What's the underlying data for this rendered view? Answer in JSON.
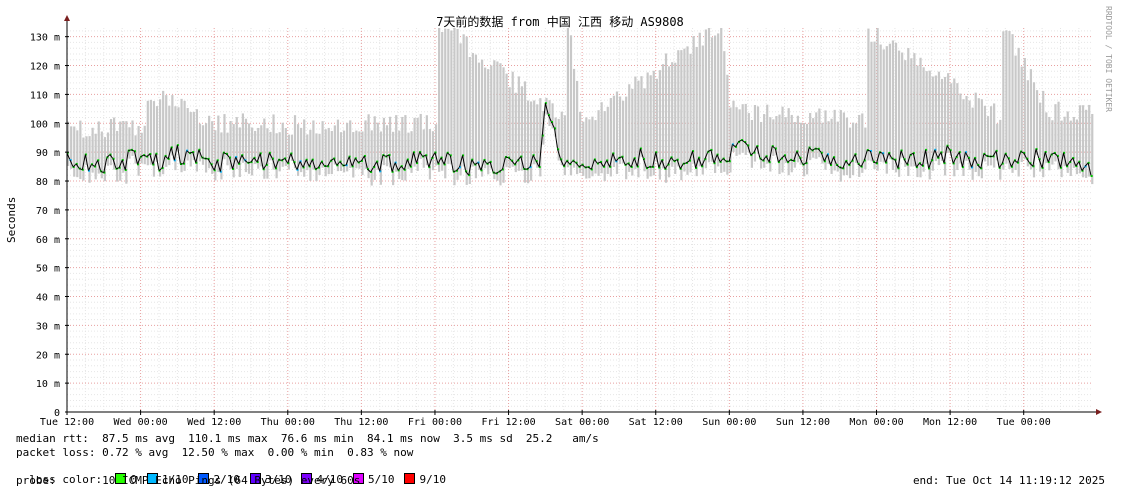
{
  "chart_data": {
    "type": "line",
    "title": "7天前的数据 from 中国 江西 移动 AS9808",
    "ylabel": "Seconds",
    "ylim": [
      0,
      133
    ],
    "y_ticks": [
      "0",
      "10 m",
      "20 m",
      "30 m",
      "40 m",
      "50 m",
      "60 m",
      "70 m",
      "80 m",
      "90 m",
      "100 m",
      "110 m",
      "120 m",
      "130 m"
    ],
    "y_tick_values": [
      0,
      10,
      20,
      30,
      40,
      50,
      60,
      70,
      80,
      90,
      100,
      110,
      120,
      130
    ],
    "x_ticks": [
      "Tue 12:00",
      "Wed 00:00",
      "Wed 12:00",
      "Thu 00:00",
      "Thu 12:00",
      "Fri 00:00",
      "Fri 12:00",
      "Sat 00:00",
      "Sat 12:00",
      "Sun 00:00",
      "Sun 12:00",
      "Mon 00:00",
      "Mon 12:00",
      "Tue 00:00"
    ],
    "x_range_hours": [
      0,
      167.3
    ],
    "x_tick_hours": [
      0,
      12,
      24,
      36,
      48,
      60,
      72,
      84,
      96,
      108,
      120,
      132,
      144,
      156
    ],
    "series": [
      {
        "name": "median rtt",
        "color": "#00cc00",
        "hours": [
          0,
          3,
          6,
          9,
          12,
          15,
          18,
          21,
          24,
          27,
          30,
          33,
          36,
          39,
          42,
          45,
          48,
          51,
          54,
          57,
          60,
          63,
          66,
          69,
          72,
          75,
          77,
          78,
          81,
          84,
          87,
          90,
          93,
          96,
          99,
          102,
          105,
          108,
          111,
          114,
          117,
          120,
          123,
          126,
          129,
          132,
          135,
          138,
          141,
          144,
          147,
          150,
          153,
          156,
          159,
          162,
          165,
          167
        ],
        "values_ms": [
          88,
          86,
          85,
          87,
          88,
          87,
          89,
          88,
          87,
          86,
          88,
          87,
          88,
          86,
          87,
          85,
          87,
          86,
          86,
          87,
          87,
          86,
          85,
          86,
          86,
          85,
          86,
          110,
          85,
          85,
          87,
          88,
          88,
          87,
          88,
          87,
          88,
          90,
          92,
          89,
          88,
          89,
          90,
          88,
          87,
          88,
          88,
          87,
          88,
          89,
          87,
          88,
          88,
          87,
          88,
          87,
          87,
          84
        ]
      },
      {
        "name": "rtt spread",
        "color": "#c8c8c8",
        "hours": [
          0,
          12,
          14,
          24,
          36,
          60,
          60.5,
          81,
          81.5,
          84,
          106,
          106.5,
          108,
          130,
          130.5,
          152,
          152.5,
          160
        ],
        "values_ms": [
          96,
          98,
          108,
          99,
          98,
          99,
          133,
          99,
          133,
          98,
          133,
          133,
          103,
          99,
          131,
          101,
          132,
          103
        ]
      }
    ]
  },
  "stats": {
    "median_rtt": "median rtt:  87.5 ms avg  110.1 ms max  76.6 ms min  84.1 ms now  3.5 ms sd  25.2   am/s",
    "packet_loss": "packet loss: 0.72 % avg  12.50 % max  0.00 % min  0.83 % now",
    "loss_color_label": "loss color:",
    "probe": "probe:       10 ICMP Echo Pings (64 Bytes) every 60s",
    "end": "end: Tue Oct 14 11:19:12 2025"
  },
  "loss_legend": [
    {
      "label": "0",
      "color": "#26ff00"
    },
    {
      "label": "1/10",
      "color": "#00b8ff"
    },
    {
      "label": "2/10",
      "color": "#0059ff"
    },
    {
      "label": "3/10",
      "color": "#5e00ff"
    },
    {
      "label": "4/10",
      "color": "#7e00ff"
    },
    {
      "label": "5/10",
      "color": "#dd00ff"
    },
    {
      "label": "9/10",
      "color": "#ff0000"
    }
  ],
  "watermark": "RRDTOOL / TOBI OETIKER"
}
